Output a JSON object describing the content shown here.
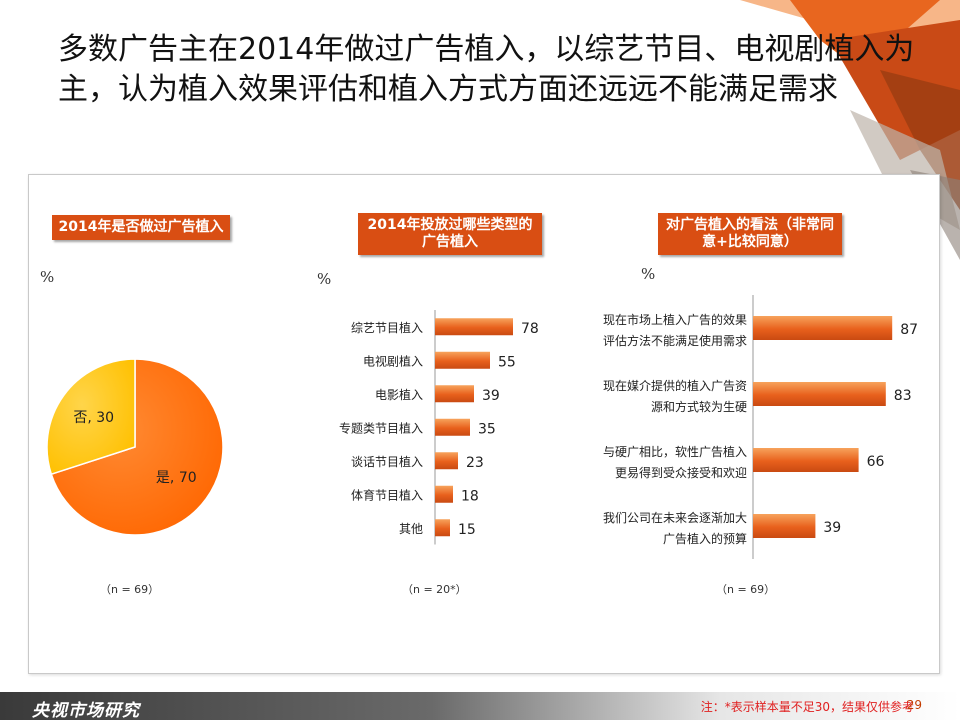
{
  "title": "多数广告主在2014年做过广告植入，以综艺节目、电视剧植入为主，认为植入效果评估和植入方式方面还远远不能满足需求",
  "colors": {
    "accent": "#d94e13",
    "bar": "#e8601c",
    "pie_yes": "#ff6600",
    "pie_no": "#ffc000"
  },
  "panels": [
    {
      "label": "2014年是否做过广告植入",
      "unit": "%",
      "n_note": "（n = 69）"
    },
    {
      "label": "2014年投放过哪些类型的广告植入",
      "unit": "%",
      "n_note": "（n = 20*）"
    },
    {
      "label": "对广告植入的看法（非常同意+比较同意）",
      "unit": "%",
      "n_note": "（n = 69）"
    }
  ],
  "chart_data": [
    {
      "type": "pie",
      "categories": [
        "是",
        "否"
      ],
      "values": [
        70,
        30
      ],
      "labels": [
        "是, 70",
        "否, 30"
      ]
    },
    {
      "type": "bar",
      "orientation": "horizontal",
      "categories": [
        "综艺节目植入",
        "电视剧植入",
        "电影植入",
        "专题类节目植入",
        "谈话节目植入",
        "体育节目植入",
        "其他"
      ],
      "values": [
        78,
        55,
        39,
        35,
        23,
        18,
        15
      ],
      "xlim": [
        0,
        100
      ]
    },
    {
      "type": "bar",
      "orientation": "horizontal",
      "categories": [
        [
          "现在市场上植入广告的效果",
          "评估方法不能满足使用需求"
        ],
        [
          "现在媒介提供的植入广告资",
          "源和方式较为生硬"
        ],
        [
          "与硬广相比，软性广告植入",
          "更易得到受众接受和欢迎"
        ],
        [
          "我们公司在未来会逐渐加大",
          "广告植入的预算"
        ]
      ],
      "values": [
        87,
        83,
        66,
        39
      ],
      "xlim": [
        0,
        100
      ]
    }
  ],
  "footer": {
    "brand": "央视市场研究",
    "note": "注：*表示样本量不足30，结果仅供参考",
    "page": "29"
  }
}
